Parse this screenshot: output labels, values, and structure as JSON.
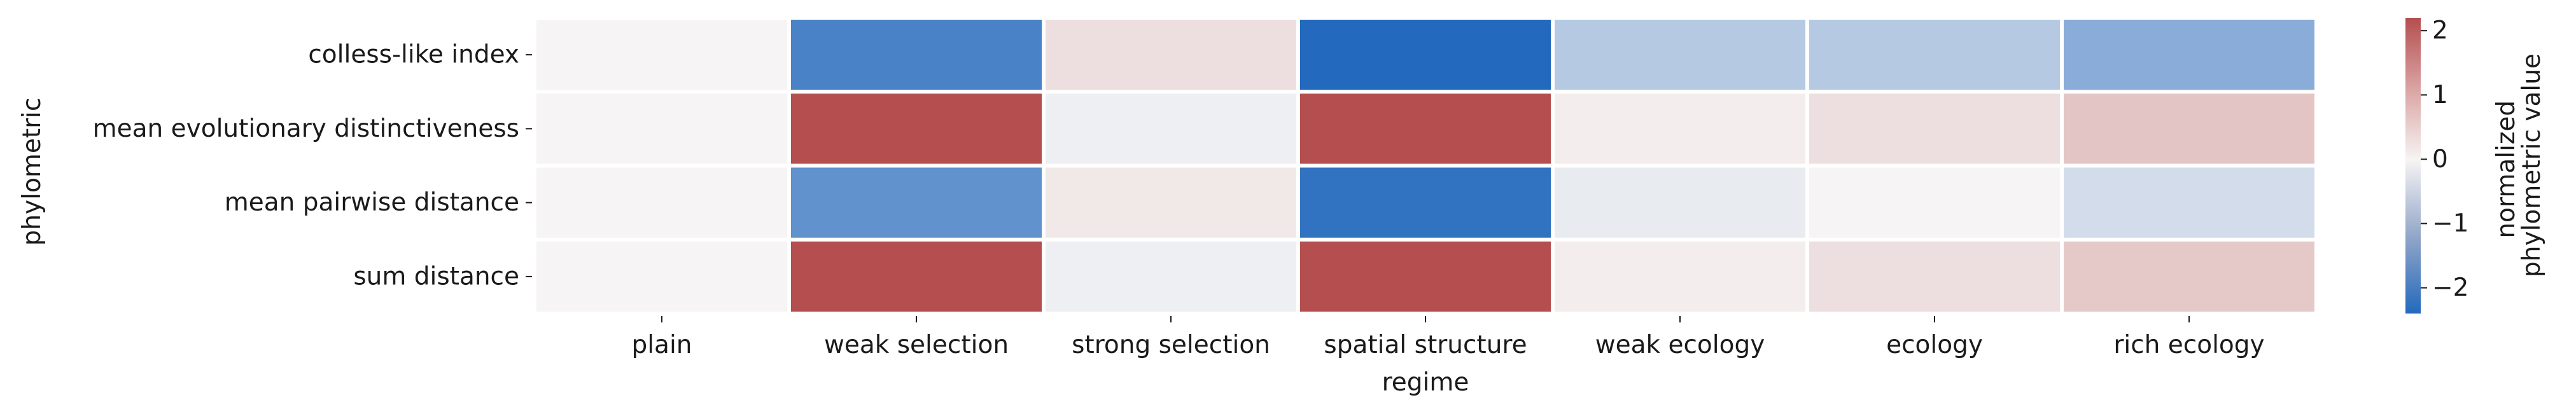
{
  "chart_data": {
    "type": "heatmap",
    "title": "",
    "xlabel": "regime",
    "ylabel": "phylometric",
    "x_categories": [
      "plain",
      "weak selection",
      "strong selection",
      "spatial structure",
      "weak ecology",
      "ecology",
      "rich ecology"
    ],
    "y_categories": [
      "colless-like index",
      "mean evolutionary distinctiveness",
      "mean pairwise distance",
      "sum distance"
    ],
    "values": [
      [
        0.0,
        -1.9,
        0.2,
        -2.4,
        -0.6,
        -0.6,
        -1.1
      ],
      [
        0.0,
        2.2,
        -0.05,
        2.2,
        0.05,
        0.2,
        0.5
      ],
      [
        0.0,
        -1.6,
        0.1,
        -2.2,
        -0.1,
        0.0,
        -0.3
      ],
      [
        0.0,
        2.2,
        -0.05,
        2.2,
        0.05,
        0.2,
        0.45
      ]
    ],
    "colorbar": {
      "label_lines": [
        "normalized",
        "phylometric value"
      ],
      "ticks": [
        2,
        1,
        0,
        -1,
        -2
      ],
      "tick_labels": [
        "2",
        "1",
        "0",
        "−1",
        "−2"
      ],
      "vmin": -2.4,
      "vmax": 2.2,
      "colormap": "vlag",
      "colors": {
        "low": "#2369bd",
        "mid": "#f6f4f4",
        "high": "#b44e4f"
      }
    },
    "grid": false,
    "cell_gap_color": "#ffffff"
  }
}
